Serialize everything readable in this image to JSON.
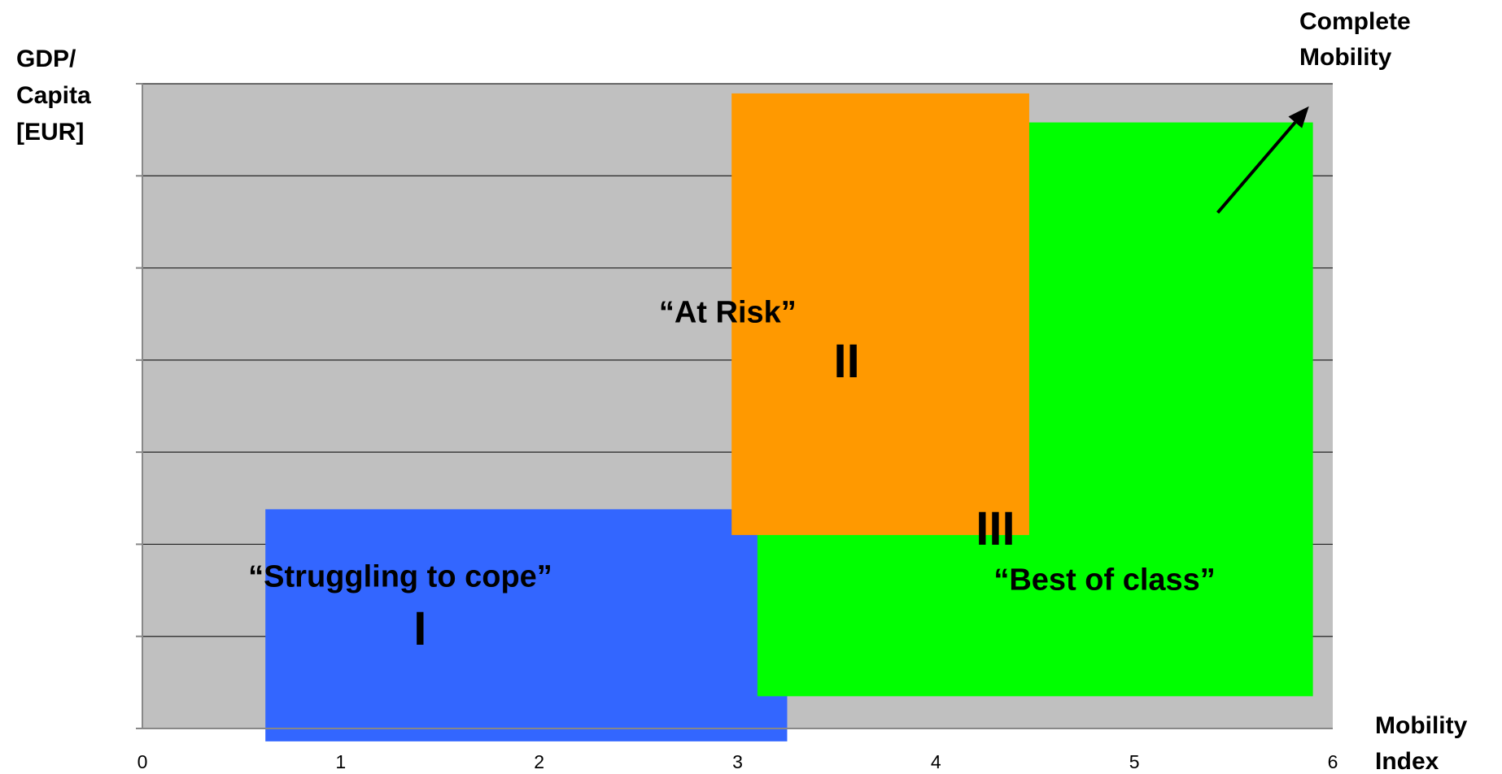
{
  "chart_data": {
    "type": "area",
    "title": "",
    "xlabel": "Mobility Index",
    "xlabel_lines": [
      "Mobility",
      "Index"
    ],
    "ylabel": "GDP/ Capita [EUR]",
    "ylabel_lines": [
      "GDP/",
      "Capita",
      "[EUR]"
    ],
    "xlim": [
      0,
      6
    ],
    "x_ticks": [
      "0",
      "1",
      "2",
      "3",
      "4",
      "5",
      "6"
    ],
    "y_gridlines": 7,
    "grid": true,
    "plot_background": "#c0c0c0",
    "regions": [
      {
        "id": "I",
        "numeral": "I",
        "label": "“Struggling to cope”",
        "color": "#3366ff",
        "x_range": [
          0.62,
          3.25
        ],
        "y_frac_range": [
          -0.02,
          0.34
        ]
      },
      {
        "id": "III",
        "numeral": "III",
        "label": "“Best of class”",
        "color": "#00ff00",
        "x_range": [
          3.1,
          5.9
        ],
        "y_frac_range": [
          0.05,
          0.94
        ]
      },
      {
        "id": "II",
        "numeral": "II",
        "label": "“At Risk”",
        "color": "#ff9900",
        "x_range": [
          2.97,
          4.47
        ],
        "y_frac_range": [
          0.3,
          0.985
        ]
      }
    ],
    "annotation": {
      "text_lines": [
        "Complete",
        "Mobility"
      ],
      "arrow": {
        "from": [
          5.42,
          0.8
        ],
        "to": [
          5.88,
          0.965
        ]
      }
    }
  }
}
